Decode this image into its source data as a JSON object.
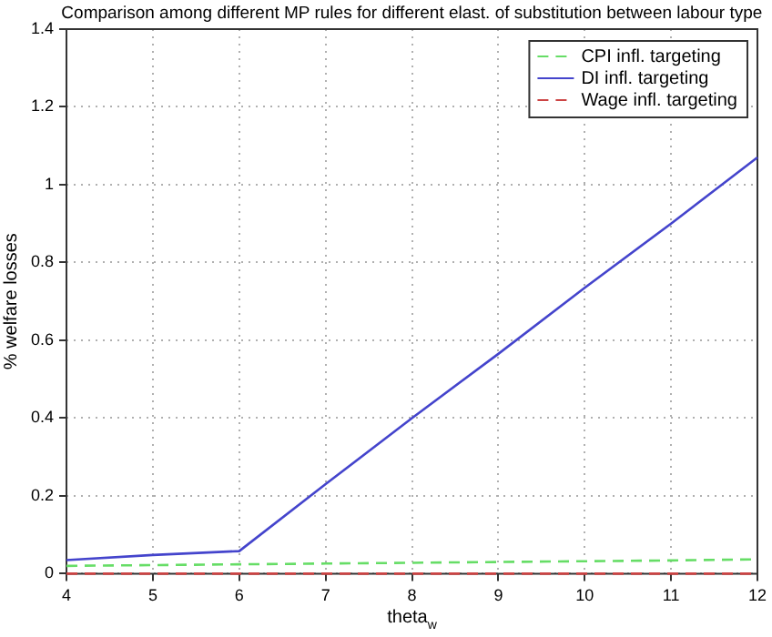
{
  "chart_data": {
    "type": "line",
    "title": "Comparison among different MP rules for different elast. of substitution between labour type",
    "xlabel": "theta$_{w}$",
    "ylabel": "% welfare losses",
    "x": [
      4,
      5,
      6,
      7,
      8,
      9,
      10,
      11,
      12
    ],
    "series": [
      {
        "name": "CPI infl. targeting",
        "color": "#66dd66",
        "line_style": "dashed",
        "values": [
          0.02,
          0.022,
          0.024,
          0.026,
          0.028,
          0.03,
          0.032,
          0.034,
          0.037
        ]
      },
      {
        "name": "DI infl. targeting",
        "color": "#4444cc",
        "line_style": "solid",
        "values": [
          0.035,
          0.048,
          0.058,
          0.23,
          0.4,
          0.565,
          0.735,
          0.9,
          1.07
        ]
      },
      {
        "name": "Wage infl. targeting",
        "color": "#cc4444",
        "line_style": "dashed",
        "values": [
          0,
          0,
          0,
          0,
          0,
          0,
          0,
          0,
          0
        ]
      }
    ],
    "xlim": [
      4,
      12
    ],
    "xticks": [
      4,
      5,
      6,
      7,
      8,
      9,
      10,
      11,
      12
    ],
    "ylim": [
      0,
      1.4
    ],
    "yticks": [
      0,
      0.2,
      0.4,
      0.6,
      0.8,
      1,
      1.2,
      1.4
    ],
    "grid": true,
    "legend": "top right",
    "marker": "none"
  }
}
